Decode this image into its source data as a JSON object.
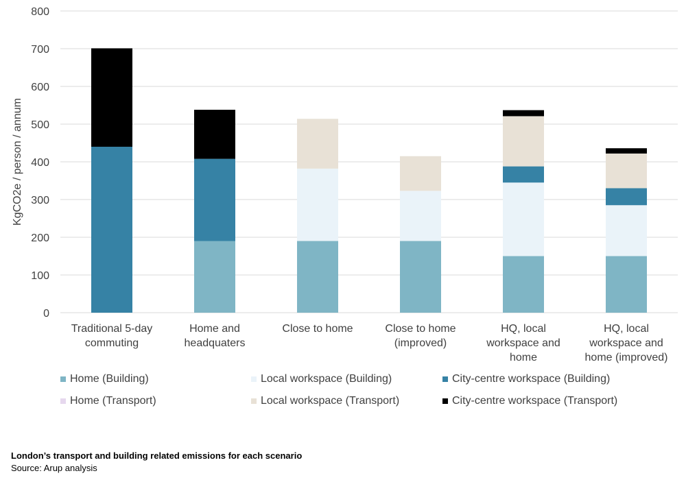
{
  "chart_data": {
    "type": "stacked-bar",
    "title": "",
    "xlabel": "",
    "ylabel": "KgCO2e / person / annum",
    "ylim": [
      0,
      800
    ],
    "yticks": [
      0,
      100,
      200,
      300,
      400,
      500,
      600,
      700,
      800
    ],
    "grid": true,
    "legend_position": "bottom",
    "categories": [
      [
        "Traditional 5-day",
        "commuting"
      ],
      [
        "Home and",
        "headquaters"
      ],
      [
        "Close to home"
      ],
      [
        "Close to home",
        "(improved)"
      ],
      [
        "HQ, local",
        "workspace and",
        "home"
      ],
      [
        "HQ, local",
        "workspace and",
        "home (improved)"
      ]
    ],
    "series": [
      {
        "name": "Home (Building)",
        "color": "#7FB5C5",
        "values": [
          0,
          190,
          190,
          190,
          150,
          150
        ]
      },
      {
        "name": "Local workspace (Building)",
        "color": "#EAF3F9",
        "values": [
          0,
          0,
          192,
          133,
          195,
          135
        ]
      },
      {
        "name": "City-centre workspace (Building)",
        "color": "#3682A5",
        "values": [
          440,
          218,
          0,
          0,
          43,
          45
        ]
      },
      {
        "name": "Home (Transport)",
        "color": "#E6D8EE",
        "values": [
          0,
          0,
          0,
          0,
          0,
          0
        ]
      },
      {
        "name": "Local workspace (Transport)",
        "color": "#E8E1D6",
        "values": [
          0,
          0,
          132,
          92,
          133,
          92
        ]
      },
      {
        "name": "City-centre workspace (Transport)",
        "color": "#000000",
        "values": [
          261,
          130,
          0,
          0,
          16,
          14
        ]
      }
    ]
  },
  "caption": {
    "title": "London’s transport and building related emissions for each scenario",
    "source": "Source: Arup analysis"
  }
}
